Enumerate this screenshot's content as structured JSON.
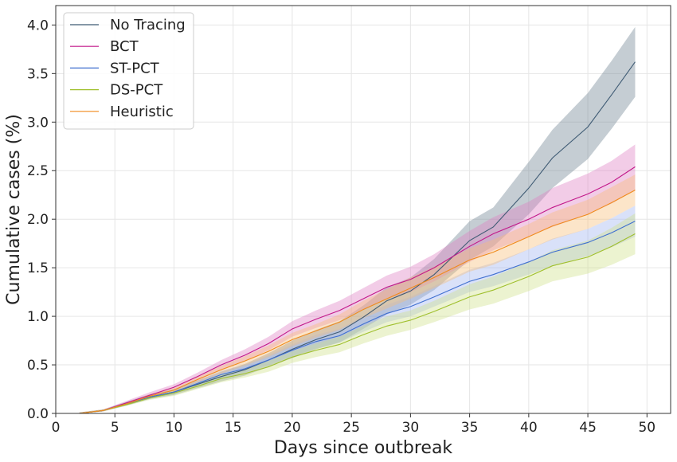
{
  "chart_data": {
    "type": "line",
    "xlabel": "Days since outbreak",
    "ylabel": "Cumulative cases (%)",
    "xlim": [
      0,
      52
    ],
    "ylim": [
      0,
      4.2
    ],
    "xticks": [
      0,
      5,
      10,
      15,
      20,
      25,
      30,
      35,
      40,
      45,
      50
    ],
    "yticks": [
      0.0,
      0.5,
      1.0,
      1.5,
      2.0,
      2.5,
      3.0,
      3.5,
      4.0
    ],
    "xtick_labels": [
      "0",
      "5",
      "10",
      "15",
      "20",
      "25",
      "30",
      "35",
      "40",
      "45",
      "50"
    ],
    "ytick_labels": [
      "0.0",
      "0.5",
      "1.0",
      "1.5",
      "2.0",
      "2.5",
      "3.0",
      "3.5",
      "4.0"
    ],
    "grid": true,
    "legend_position": "top-left",
    "x": [
      2,
      4,
      6,
      8,
      10,
      12,
      14,
      16,
      18,
      20,
      22,
      24,
      26,
      28,
      30,
      32,
      35,
      37,
      40,
      42,
      45,
      47,
      49
    ],
    "series": [
      {
        "name": "No Tracing",
        "color": "#3f5b74",
        "band_color": "#6f8290",
        "values": [
          0.0,
          0.03,
          0.1,
          0.17,
          0.22,
          0.3,
          0.38,
          0.45,
          0.55,
          0.66,
          0.76,
          0.84,
          0.99,
          1.16,
          1.26,
          1.43,
          1.78,
          1.92,
          2.32,
          2.63,
          2.95,
          3.28,
          3.62
        ],
        "lower": [
          0.0,
          0.02,
          0.08,
          0.15,
          0.19,
          0.26,
          0.33,
          0.39,
          0.48,
          0.57,
          0.66,
          0.73,
          0.87,
          1.02,
          1.12,
          1.27,
          1.58,
          1.72,
          2.05,
          2.32,
          2.62,
          2.93,
          3.26
        ],
        "upper": [
          0.01,
          0.04,
          0.12,
          0.2,
          0.25,
          0.34,
          0.43,
          0.51,
          0.62,
          0.75,
          0.86,
          0.95,
          1.11,
          1.3,
          1.4,
          1.59,
          1.98,
          2.12,
          2.59,
          2.92,
          3.3,
          3.63,
          3.98
        ]
      },
      {
        "name": "BCT",
        "color": "#c2188a",
        "band_color": "#df7fc2",
        "values": [
          0.0,
          0.03,
          0.11,
          0.19,
          0.27,
          0.38,
          0.5,
          0.6,
          0.72,
          0.87,
          0.97,
          1.06,
          1.18,
          1.3,
          1.38,
          1.5,
          1.72,
          1.85,
          2.0,
          2.12,
          2.26,
          2.38,
          2.54
        ],
        "lower": [
          0.0,
          0.02,
          0.09,
          0.17,
          0.24,
          0.34,
          0.45,
          0.54,
          0.65,
          0.79,
          0.88,
          0.96,
          1.07,
          1.18,
          1.25,
          1.36,
          1.56,
          1.68,
          1.82,
          1.92,
          2.05,
          2.16,
          2.3
        ],
        "upper": [
          0.01,
          0.04,
          0.13,
          0.22,
          0.3,
          0.42,
          0.55,
          0.66,
          0.79,
          0.95,
          1.06,
          1.16,
          1.29,
          1.42,
          1.51,
          1.64,
          1.88,
          2.02,
          2.18,
          2.32,
          2.47,
          2.6,
          2.77
        ]
      },
      {
        "name": "ST-PCT",
        "color": "#3f6fcf",
        "band_color": "#9fb4f0",
        "values": [
          0.0,
          0.03,
          0.1,
          0.17,
          0.22,
          0.31,
          0.4,
          0.46,
          0.55,
          0.65,
          0.74,
          0.8,
          0.92,
          1.03,
          1.1,
          1.2,
          1.36,
          1.43,
          1.56,
          1.66,
          1.76,
          1.86,
          1.98
        ],
        "lower": [
          0.0,
          0.02,
          0.09,
          0.15,
          0.2,
          0.28,
          0.36,
          0.42,
          0.5,
          0.59,
          0.67,
          0.73,
          0.84,
          0.94,
          1.0,
          1.1,
          1.25,
          1.31,
          1.43,
          1.52,
          1.62,
          1.71,
          1.82
        ],
        "upper": [
          0.01,
          0.04,
          0.11,
          0.19,
          0.24,
          0.34,
          0.44,
          0.5,
          0.6,
          0.71,
          0.81,
          0.87,
          1.0,
          1.12,
          1.2,
          1.31,
          1.48,
          1.55,
          1.69,
          1.8,
          1.9,
          2.01,
          2.14
        ]
      },
      {
        "name": "DS-PCT",
        "color": "#9fbf2c",
        "band_color": "#cfe08a",
        "values": [
          0.0,
          0.03,
          0.09,
          0.16,
          0.21,
          0.28,
          0.36,
          0.41,
          0.48,
          0.58,
          0.65,
          0.71,
          0.81,
          0.9,
          0.96,
          1.05,
          1.2,
          1.27,
          1.41,
          1.52,
          1.61,
          1.72,
          1.85
        ],
        "lower": [
          0.0,
          0.02,
          0.08,
          0.14,
          0.18,
          0.25,
          0.32,
          0.37,
          0.43,
          0.52,
          0.58,
          0.63,
          0.72,
          0.8,
          0.86,
          0.94,
          1.07,
          1.13,
          1.26,
          1.36,
          1.44,
          1.53,
          1.64
        ],
        "upper": [
          0.01,
          0.04,
          0.1,
          0.18,
          0.24,
          0.31,
          0.4,
          0.46,
          0.54,
          0.64,
          0.72,
          0.79,
          0.9,
          1.0,
          1.06,
          1.16,
          1.33,
          1.41,
          1.56,
          1.68,
          1.78,
          1.91,
          2.06
        ]
      },
      {
        "name": "Heuristic",
        "color": "#f08a1c",
        "band_color": "#f8bd78",
        "values": [
          0.0,
          0.03,
          0.1,
          0.18,
          0.24,
          0.35,
          0.45,
          0.54,
          0.64,
          0.76,
          0.85,
          0.94,
          1.07,
          1.18,
          1.29,
          1.4,
          1.58,
          1.66,
          1.82,
          1.93,
          2.05,
          2.17,
          2.3
        ],
        "lower": [
          0.0,
          0.02,
          0.09,
          0.16,
          0.22,
          0.32,
          0.41,
          0.49,
          0.58,
          0.69,
          0.78,
          0.86,
          0.98,
          1.08,
          1.18,
          1.29,
          1.46,
          1.53,
          1.69,
          1.79,
          1.9,
          2.01,
          2.14
        ],
        "upper": [
          0.01,
          0.04,
          0.11,
          0.2,
          0.26,
          0.38,
          0.49,
          0.59,
          0.7,
          0.83,
          0.92,
          1.02,
          1.16,
          1.28,
          1.4,
          1.51,
          1.7,
          1.79,
          1.95,
          2.07,
          2.2,
          2.33,
          2.46
        ]
      }
    ]
  }
}
